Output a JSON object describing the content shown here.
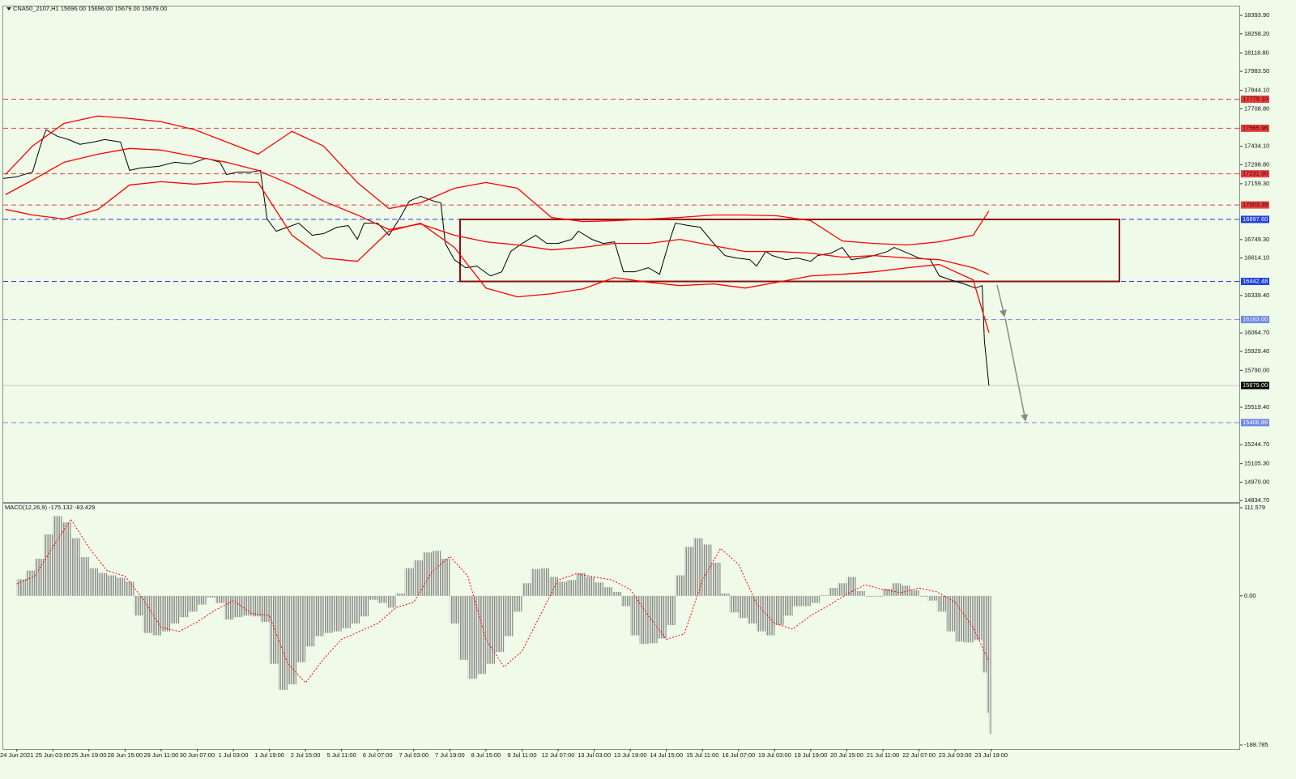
{
  "chart_data": [
    {
      "type": "line",
      "title": "CNA50_2107,H1  15696.00 15696.00 15679.00 15679.00",
      "xlim": [
        -6,
        542
      ],
      "ylim": [
        14824,
        18459.4
      ],
      "yticks": [
        {
          "value": 18393.9,
          "label": "18393.90"
        },
        {
          "value": 18258.2,
          "label": "18258.20"
        },
        {
          "value": 18118.8,
          "label": "18118.80"
        },
        {
          "value": 17983.5,
          "label": "17983.50"
        },
        {
          "value": 17844.1,
          "label": "17844.10"
        },
        {
          "value": 17708.8,
          "label": "17708.80"
        },
        {
          "value": 17434.1,
          "label": "17434.10"
        },
        {
          "value": 17298.8,
          "label": "17298.80"
        },
        {
          "value": 17159.3,
          "label": "17159.30"
        },
        {
          "value": 16749.3,
          "label": "16749.30"
        },
        {
          "value": 16614.1,
          "label": "16614.10"
        },
        {
          "value": 16339.4,
          "label": "16339.40"
        },
        {
          "value": 16064.7,
          "label": "16064.70"
        },
        {
          "value": 15929.4,
          "label": "15929.40"
        },
        {
          "value": 15790,
          "label": "15790.00"
        },
        {
          "value": 15519.4,
          "label": "15519.40"
        },
        {
          "value": 15244.7,
          "label": "15244.70"
        },
        {
          "value": 15105.3,
          "label": "15105.30"
        },
        {
          "value": 14970,
          "label": "14970.00"
        },
        {
          "value": 14834.7,
          "label": "14834.70"
        }
      ],
      "hlines": [
        {
          "value": 17779.1,
          "label": "17779.10",
          "color": "#e8403f",
          "text_color": "#3a0000",
          "dashed": true
        },
        {
          "value": 17565.96,
          "label": "17565.96",
          "color": "#e8403f",
          "text_color": "#3a0000",
          "dashed": true
        },
        {
          "value": 17231.9,
          "label": "17231.90",
          "color": "#e8403f",
          "text_color": "#3a0000",
          "dashed": true
        },
        {
          "value": 17003.39,
          "label": "17003.39",
          "color": "#e8403f",
          "text_color": "#3a0000",
          "dashed": true
        },
        {
          "value": 16897.6,
          "label": "16897.60",
          "color": "#1f3fe0",
          "text_color": "#ffffff",
          "dashed": true
        },
        {
          "value": 16442.48,
          "label": "16442.48",
          "color": "#1f3fe0",
          "text_color": "#ffffff",
          "dashed": true
        },
        {
          "value": 16163,
          "label": "16163.00",
          "color": "#6f86e6",
          "text_color": "#ffffff",
          "dashed": true
        },
        {
          "value": 15406.89,
          "label": "15406.89",
          "color": "#6f86e6",
          "text_color": "#ffffff",
          "dashed": true
        },
        {
          "value": 15679,
          "label": "15679.00",
          "color": "#c4c4c4",
          "label_fill": "#000000",
          "text_color": "#ffffff",
          "dashed": false
        }
      ],
      "series": [
        {
          "color": "#000000",
          "width": 1,
          "x": [
            -6,
            0,
            7,
            11,
            13,
            18,
            23,
            28,
            34,
            39,
            46,
            50,
            55,
            63,
            70,
            77,
            84,
            90,
            93,
            98,
            104,
            108,
            111,
            115,
            120,
            125,
            131,
            136,
            142,
            147,
            151,
            154,
            160,
            165,
            170,
            174,
            179,
            185,
            188,
            190,
            194,
            199,
            204,
            210,
            215,
            219,
            224,
            230,
            235,
            240,
            246,
            249,
            255,
            260,
            265,
            269,
            274,
            280,
            285,
            289,
            292,
            298,
            303,
            309,
            314,
            319,
            325,
            328,
            332,
            335,
            341,
            346,
            352,
            355,
            361,
            366,
            370,
            375,
            380,
            386,
            389,
            395,
            400,
            405,
            409,
            414,
            420,
            425,
            428,
            429,
            431
          ],
          "values": [
            17198,
            17210,
            17245,
            17465,
            17555,
            17507,
            17483,
            17448,
            17465,
            17483,
            17465,
            17257,
            17275,
            17287,
            17317,
            17305,
            17346,
            17317,
            17227,
            17245,
            17245,
            17257,
            16900,
            16811,
            16840,
            16870,
            16781,
            16793,
            16840,
            16852,
            16751,
            16870,
            16870,
            16781,
            16912,
            17031,
            17067,
            17031,
            17019,
            16721,
            16602,
            16543,
            16555,
            16483,
            16513,
            16662,
            16721,
            16781,
            16721,
            16721,
            16751,
            16811,
            16751,
            16721,
            16733,
            16513,
            16513,
            16543,
            16495,
            16721,
            16870,
            16852,
            16840,
            16721,
            16632,
            16614,
            16602,
            16555,
            16662,
            16632,
            16602,
            16614,
            16590,
            16632,
            16650,
            16692,
            16602,
            16614,
            16632,
            16662,
            16692,
            16650,
            16614,
            16602,
            16483,
            16454,
            16424,
            16394,
            16412,
            16007,
            15679
          ]
        },
        {
          "color": "#ff0000",
          "width": 1.3,
          "x": [
            -5,
            7,
            21,
            36,
            50,
            64,
            79,
            93,
            107,
            122,
            136,
            151,
            165,
            179,
            194,
            208,
            222,
            237,
            251,
            265,
            280,
            294,
            309,
            323,
            337,
            352,
            366,
            380,
            395,
            409,
            424,
            431
          ],
          "values": [
            17227,
            17436,
            17602,
            17656,
            17638,
            17614,
            17555,
            17465,
            17376,
            17543,
            17436,
            17168,
            16977,
            17019,
            17126,
            17168,
            17126,
            16912,
            16882,
            16888,
            16900,
            16912,
            16930,
            16930,
            16924,
            16888,
            16739,
            16721,
            16710,
            16733,
            16781,
            16960
          ]
        },
        {
          "color": "#ff0000",
          "width": 1.3,
          "x": [
            -5,
            7,
            21,
            36,
            50,
            64,
            79,
            93,
            107,
            122,
            136,
            151,
            165,
            179,
            194,
            208,
            222,
            237,
            251,
            265,
            280,
            294,
            309,
            323,
            337,
            352,
            366,
            380,
            395,
            409,
            424,
            431
          ],
          "values": [
            17079,
            17186,
            17317,
            17376,
            17418,
            17406,
            17358,
            17317,
            17257,
            17150,
            17031,
            16930,
            16823,
            16864,
            16781,
            16733,
            16710,
            16674,
            16692,
            16721,
            16721,
            16751,
            16704,
            16662,
            16662,
            16650,
            16620,
            16632,
            16614,
            16602,
            16543,
            16495
          ]
        },
        {
          "color": "#ff0000",
          "width": 1.3,
          "x": [
            -5,
            7,
            21,
            36,
            50,
            64,
            79,
            93,
            107,
            122,
            136,
            151,
            165,
            179,
            194,
            208,
            222,
            237,
            251,
            265,
            280,
            294,
            309,
            323,
            337,
            352,
            366,
            380,
            395,
            409,
            424,
            431
          ],
          "values": [
            16971,
            16930,
            16900,
            16971,
            17150,
            17174,
            17156,
            17174,
            17168,
            16781,
            16614,
            16590,
            16811,
            16870,
            16692,
            16394,
            16329,
            16352,
            16388,
            16471,
            16436,
            16412,
            16424,
            16394,
            16436,
            16483,
            16495,
            16513,
            16543,
            16567,
            16454,
            16067
          ]
        }
      ]
    },
    {
      "type": "bar",
      "title": "MACD(12,26,9) -175.132 -83.429",
      "xlim": [
        -6,
        542
      ],
      "ylim": [
        -193.9,
        116.7
      ],
      "yticks": [
        111.579,
        {
          "value": 0,
          "label": "0.00"
        },
        -188.785
      ],
      "xticks": [
        {
          "value": 0,
          "label": "24 Jun 2021"
        },
        {
          "value": 16,
          "label": "25 Jun 03:00"
        },
        {
          "value": 32,
          "label": "25 Jun 19:00"
        },
        {
          "value": 48,
          "label": "28 Jun 15:00"
        },
        {
          "value": 64,
          "label": "29 Jun 11:00"
        },
        {
          "value": 80,
          "label": "30 Jun 07:00"
        },
        {
          "value": 96,
          "label": "1 Jul 03:00"
        },
        {
          "value": 112,
          "label": "1 Jul 19:00"
        },
        {
          "value": 128,
          "label": "2 Jul 15:00"
        },
        {
          "value": 144,
          "label": "5 Jul 11:00"
        },
        {
          "value": 160,
          "label": "6 Jul 07:00"
        },
        {
          "value": 176,
          "label": "7 Jul 03:00"
        },
        {
          "value": 192,
          "label": "7 Jul 19:00"
        },
        {
          "value": 208,
          "label": "8 Jul 15:00"
        },
        {
          "value": 224,
          "label": "9 Jul 11:00"
        },
        {
          "value": 240,
          "label": "12 Jul 07:00"
        },
        {
          "value": 256,
          "label": "13 Jul 03:00"
        },
        {
          "value": 272,
          "label": "13 Jul 19:00"
        },
        {
          "value": 288,
          "label": "14 Jul 15:00"
        },
        {
          "value": 304,
          "label": "15 Jul 11:00"
        },
        {
          "value": 320,
          "label": "16 Jul 07:00"
        },
        {
          "value": 336,
          "label": "19 Jul 03:00"
        },
        {
          "value": 352,
          "label": "19 Jul 19:00"
        },
        {
          "value": 368,
          "label": "20 Jul 15:00"
        },
        {
          "value": 384,
          "label": "21 Jul 11:00"
        },
        {
          "value": 400,
          "label": "22 Jul 07:00"
        },
        {
          "value": 416,
          "label": "23 Jul 03:00"
        },
        {
          "value": 432,
          "label": "23 Jul 19:00"
        }
      ],
      "series": [
        {
          "color": "#8a8a8a",
          "x": [
            0,
            4,
            8,
            12,
            16,
            20,
            24,
            28,
            32,
            36,
            40,
            44,
            48,
            52,
            56,
            60,
            64,
            68,
            72,
            76,
            80,
            84,
            88,
            92,
            96,
            100,
            104,
            108,
            112,
            116,
            120,
            124,
            128,
            132,
            136,
            140,
            144,
            148,
            152,
            156,
            160,
            164,
            168,
            172,
            176,
            180,
            184,
            188,
            192,
            196,
            200,
            204,
            208,
            212,
            216,
            220,
            224,
            228,
            232,
            236,
            240,
            244,
            248,
            252,
            256,
            260,
            264,
            268,
            272,
            276,
            280,
            284,
            288,
            292,
            296,
            300,
            304,
            308,
            312,
            316,
            320,
            324,
            328,
            332,
            336,
            340,
            344,
            348,
            352,
            356,
            360,
            364,
            368,
            372,
            376,
            380,
            384,
            388,
            392,
            396,
            400,
            404,
            408,
            412,
            416,
            420,
            424,
            428,
            430,
            431
          ],
          "values": [
            21,
            32,
            47,
            78,
            101,
            93,
            73,
            49,
            35,
            29,
            26,
            23,
            18,
            -25,
            -47,
            -50,
            -45,
            -35,
            -27,
            -20,
            -11,
            -2,
            -9,
            -30,
            -27,
            -25,
            -26,
            -33,
            -86,
            -119,
            -112,
            -84,
            -64,
            -51,
            -47,
            -45,
            -41,
            -35,
            -26,
            -5,
            -9,
            -15,
            3,
            35,
            45,
            55,
            57,
            47,
            -35,
            -81,
            -105,
            -99,
            -86,
            -71,
            -51,
            -20,
            16,
            34,
            35,
            24,
            18,
            20,
            29,
            24,
            17,
            11,
            5,
            -13,
            -50,
            -61,
            -60,
            -54,
            -37,
            26,
            62,
            73,
            65,
            42,
            3,
            -21,
            -28,
            -35,
            -45,
            -50,
            -37,
            -25,
            -13,
            -13,
            -9,
            1,
            10,
            16,
            24,
            6,
            -1,
            -1,
            9,
            16,
            13,
            7,
            -1,
            -6,
            -20,
            -45,
            -58,
            -59,
            -56,
            -97,
            -148,
            -175
          ]
        },
        {
          "type": "line",
          "color": "#ff0000",
          "width": 1,
          "dotted": true,
          "x": [
            0,
            8,
            16,
            24,
            32,
            40,
            48,
            56,
            64,
            72,
            80,
            88,
            96,
            104,
            112,
            120,
            128,
            136,
            144,
            152,
            160,
            168,
            176,
            184,
            192,
            200,
            208,
            216,
            224,
            232,
            240,
            248,
            256,
            264,
            272,
            280,
            288,
            296,
            304,
            312,
            320,
            328,
            336,
            344,
            352,
            360,
            368,
            376,
            384,
            392,
            400,
            408,
            416,
            424,
            431
          ],
          "values": [
            15,
            25,
            62,
            97,
            61,
            32,
            25,
            -4,
            -40,
            -45,
            -33,
            -18,
            -6,
            -22,
            -25,
            -85,
            -110,
            -80,
            -55,
            -45,
            -35,
            -15,
            -8,
            30,
            50,
            25,
            -55,
            -90,
            -70,
            -25,
            20,
            28,
            24,
            20,
            8,
            -25,
            -55,
            -48,
            20,
            60,
            40,
            -10,
            -35,
            -42,
            -25,
            -12,
            2,
            14,
            8,
            4,
            10,
            5,
            -8,
            -40,
            -83
          ]
        }
      ]
    }
  ]
}
